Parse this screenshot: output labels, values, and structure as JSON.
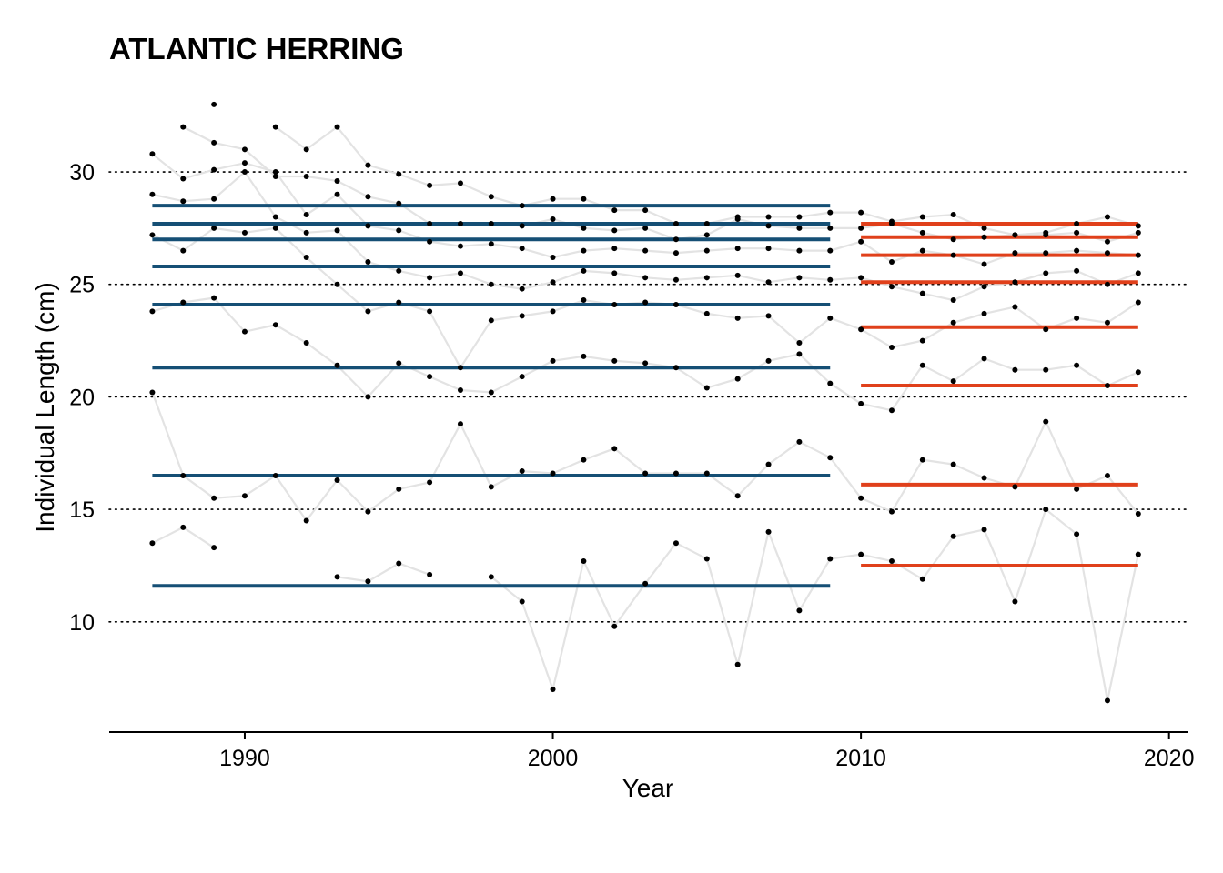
{
  "chart_data": {
    "type": "line",
    "title": "ATLANTIC HERRING",
    "xlabel": "Year",
    "ylabel": "Individual Length (cm)",
    "xlim": [
      1985.6,
      2020.6
    ],
    "ylim": [
      5.1,
      33.6
    ],
    "x_ticks": [
      1990,
      2000,
      2010,
      2020
    ],
    "y_ticks": [
      10,
      15,
      20,
      25,
      30
    ],
    "grid": "horizontal dotted at y ticks",
    "legend": "none",
    "colors": {
      "period1": "#154f75",
      "period2": "#e0401b",
      "trajectory": "#e3e3e3",
      "points": "#000000"
    },
    "period_means": [
      {
        "period": "1987-2009",
        "x_start": 1987,
        "x_end": 2009,
        "values": [
          11.6,
          16.5,
          21.3,
          24.1,
          25.8,
          27.0,
          27.7,
          28.5
        ]
      },
      {
        "period": "2010-2019",
        "x_start": 2010,
        "x_end": 2019,
        "values": [
          12.5,
          16.1,
          20.5,
          23.1,
          25.1,
          26.3,
          27.1,
          27.7
        ]
      }
    ],
    "series": [
      {
        "x": [
          1987,
          1988,
          1989,
          1990,
          1991,
          1992,
          1993,
          1994,
          1995,
          1996,
          1997,
          1998,
          1999,
          2000,
          2001,
          2002,
          2003,
          2004,
          2005,
          2006,
          2007,
          2008,
          2009,
          2010,
          2011,
          2012,
          2013,
          2014,
          2015,
          2016,
          2017,
          2018,
          2019
        ],
        "y": [
          13.5,
          14.2,
          13.3,
          null,
          null,
          null,
          12.0,
          11.8,
          12.6,
          12.1,
          null,
          12.0,
          10.9,
          7.0,
          12.7,
          9.8,
          11.7,
          13.5,
          12.8,
          8.1,
          14.0,
          10.5,
          12.8,
          13.0,
          12.7,
          11.9,
          13.8,
          14.1,
          10.9,
          15.0,
          13.9,
          6.5,
          13.0
        ]
      },
      {
        "x": [
          1987,
          1988,
          1989,
          1990,
          1991,
          1992,
          1993,
          1994,
          1995,
          1996,
          1997,
          1998,
          1999,
          2000,
          2001,
          2002,
          2003,
          2004,
          2005,
          2006,
          2007,
          2008,
          2009,
          2010,
          2011,
          2012,
          2013,
          2014,
          2015,
          2016,
          2017,
          2018,
          2019
        ],
        "y": [
          20.2,
          16.5,
          15.5,
          15.6,
          16.5,
          14.5,
          16.3,
          14.9,
          15.9,
          16.2,
          18.8,
          16.0,
          16.7,
          16.6,
          17.2,
          17.7,
          16.6,
          16.6,
          16.6,
          15.6,
          17.0,
          18.0,
          17.3,
          15.5,
          14.9,
          17.2,
          17.0,
          16.4,
          16.0,
          18.9,
          15.9,
          16.5,
          14.8
        ]
      },
      {
        "x": [
          1987,
          1988,
          1989,
          1990,
          1991,
          1992,
          1993,
          1994,
          1995,
          1996,
          1997,
          1998,
          1999,
          2000,
          2001,
          2002,
          2003,
          2004,
          2005,
          2006,
          2007,
          2008,
          2009,
          2010,
          2011,
          2012,
          2013,
          2014,
          2015,
          2016,
          2017,
          2018,
          2019
        ],
        "y": [
          23.8,
          24.2,
          24.4,
          22.9,
          23.2,
          22.4,
          21.4,
          20.0,
          21.5,
          20.9,
          20.3,
          20.2,
          20.9,
          21.6,
          21.8,
          21.6,
          21.5,
          21.3,
          20.4,
          20.8,
          21.6,
          21.9,
          20.6,
          19.7,
          19.4,
          21.4,
          20.7,
          21.7,
          21.2,
          21.2,
          21.4,
          20.5,
          21.1
        ]
      },
      {
        "x": [
          1987,
          1988,
          1989,
          1990,
          1991,
          1992,
          1993,
          1994,
          1995,
          1996,
          1997,
          1998,
          1999,
          2000,
          2001,
          2002,
          2003,
          2004,
          2005,
          2006,
          2007,
          2008,
          2009,
          2010,
          2011,
          2012,
          2013,
          2014,
          2015,
          2016,
          2017,
          2018,
          2019
        ],
        "y": [
          27.2,
          26.5,
          27.5,
          27.3,
          27.5,
          26.2,
          25.0,
          23.8,
          24.2,
          23.8,
          21.3,
          23.4,
          23.6,
          23.8,
          24.3,
          24.1,
          24.2,
          24.1,
          23.7,
          23.5,
          23.6,
          22.4,
          23.5,
          23.0,
          22.2,
          22.5,
          23.3,
          23.7,
          24.0,
          23.0,
          23.5,
          23.3,
          24.2
        ]
      },
      {
        "x": [
          1987,
          1988,
          1989,
          1990,
          1991,
          1992,
          1993,
          1994,
          1995,
          1996,
          1997,
          1998,
          1999,
          2000,
          2001,
          2002,
          2003,
          2004,
          2005,
          2006,
          2007,
          2008,
          2009,
          2010,
          2011,
          2012,
          2013,
          2014,
          2015,
          2016,
          2017,
          2018,
          2019
        ],
        "y": [
          29.0,
          28.7,
          28.8,
          30.0,
          28.0,
          27.3,
          27.4,
          26.0,
          25.6,
          25.3,
          25.5,
          25.0,
          24.8,
          25.1,
          25.6,
          25.5,
          25.3,
          25.2,
          25.3,
          25.4,
          25.1,
          25.3,
          25.2,
          25.3,
          24.9,
          24.6,
          24.3,
          24.9,
          25.1,
          25.5,
          25.6,
          25.0,
          25.5
        ]
      },
      {
        "x": [
          1987,
          1988,
          1989,
          1990,
          1991,
          1992,
          1993,
          1994,
          1995,
          1996,
          1997,
          1998,
          1999,
          2000,
          2001,
          2002,
          2003,
          2004,
          2005,
          2006,
          2007,
          2008,
          2009,
          2010,
          2011,
          2012,
          2013,
          2014,
          2015,
          2016,
          2017,
          2018,
          2019
        ],
        "y": [
          30.8,
          29.7,
          30.1,
          30.4,
          30.0,
          28.1,
          29.0,
          27.6,
          27.4,
          26.9,
          26.7,
          26.8,
          26.6,
          26.2,
          26.5,
          26.6,
          26.5,
          26.4,
          26.5,
          26.6,
          26.6,
          26.5,
          26.5,
          26.9,
          26.0,
          26.5,
          26.3,
          25.9,
          26.4,
          26.4,
          26.5,
          26.4,
          26.3
        ]
      },
      {
        "x": [
          1987,
          1988,
          1989,
          1990,
          1991,
          1992,
          1993,
          1994,
          1995,
          1996,
          1997,
          1998,
          1999,
          2000,
          2001,
          2002,
          2003,
          2004,
          2005,
          2006,
          2007,
          2008,
          2009,
          2010,
          2011,
          2012,
          2013,
          2014,
          2015,
          2016,
          2017,
          2018,
          2019
        ],
        "y": [
          null,
          32.0,
          31.3,
          31.0,
          29.8,
          29.8,
          29.6,
          28.9,
          28.6,
          27.7,
          27.7,
          27.7,
          27.6,
          27.9,
          27.5,
          27.4,
          27.5,
          27.0,
          27.2,
          27.9,
          27.6,
          27.5,
          27.5,
          27.5,
          27.7,
          27.3,
          27.0,
          27.1,
          27.2,
          27.2,
          27.3,
          26.9,
          27.3
        ]
      },
      {
        "x": [
          1987,
          1988,
          1989,
          1990,
          1991,
          1992,
          1993,
          1994,
          1995,
          1996,
          1997,
          1998,
          1999,
          2000,
          2001,
          2002,
          2003,
          2004,
          2005,
          2006,
          2007,
          2008,
          2009,
          2010,
          2011,
          2012,
          2013,
          2014,
          2015,
          2016,
          2017,
          2018,
          2019
        ],
        "y": [
          null,
          null,
          33.0,
          null,
          32.0,
          31.0,
          32.0,
          30.3,
          29.9,
          29.4,
          29.5,
          28.9,
          28.5,
          28.8,
          28.8,
          28.3,
          28.3,
          27.7,
          27.7,
          28.0,
          28.0,
          28.0,
          28.2,
          28.2,
          27.8,
          28.0,
          28.1,
          27.5,
          27.2,
          27.3,
          27.7,
          28.0,
          27.6
        ]
      }
    ]
  }
}
